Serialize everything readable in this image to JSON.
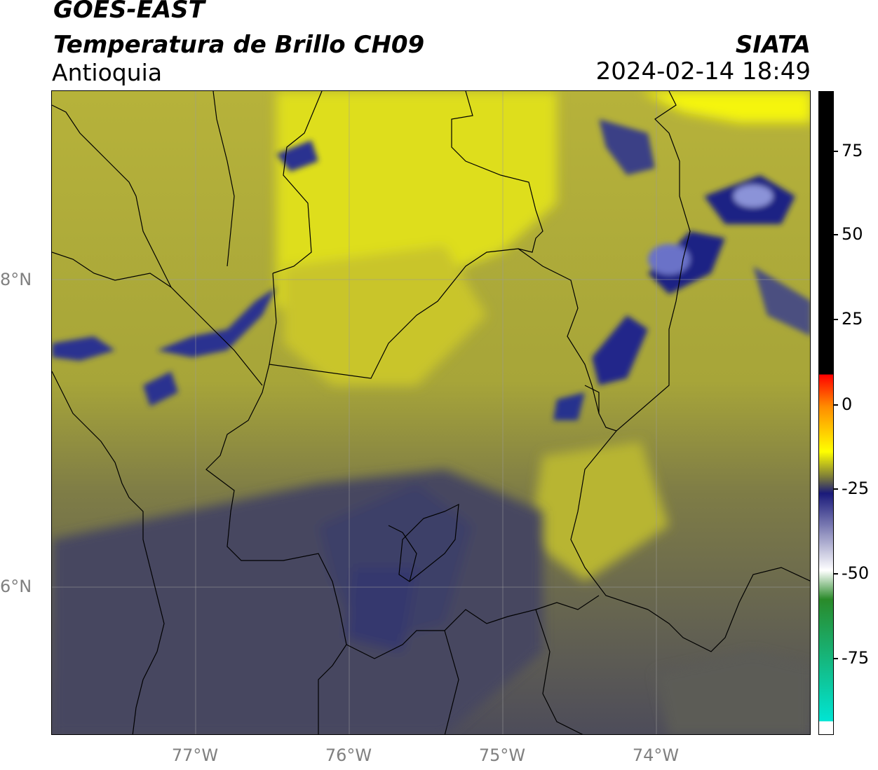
{
  "header": {
    "satellite": "GOES-EAST",
    "product": "Temperatura de Brillo CH09",
    "region": "Antioquia",
    "org": "SIATA",
    "datetime": "2024-02-14 18:49"
  },
  "map": {
    "lat_ticks": [
      "8°N",
      "6°N"
    ],
    "lon_ticks": [
      "77°W",
      "76°W",
      "75°W",
      "74°W"
    ]
  },
  "colorbar": {
    "tick_labels": [
      "75",
      "50",
      "25",
      "0",
      "-25",
      "-50",
      "-75"
    ],
    "colors": {
      "black": "#000000",
      "red": "#ff0000",
      "orange": "#ff8c00",
      "yellow": "#ffff00",
      "olive": "#7a7a3a",
      "navy": "#1a1a7a",
      "white": "#ffffff",
      "green": "#2a8a2a",
      "cyan": "#00e5d4"
    }
  }
}
